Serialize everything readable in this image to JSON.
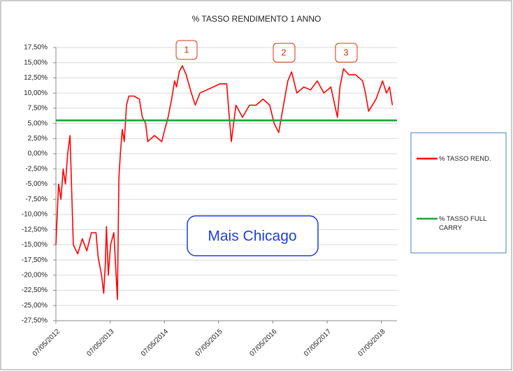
{
  "chart_data": {
    "type": "line",
    "title": "%  TASSO RENDIMENTO 1 ANNO",
    "xlim": [
      "07/05/2012",
      "20/08/2018"
    ],
    "xticks": [
      "07/05/2012",
      "07/05/2013",
      "07/05/2014",
      "07/05/2015",
      "07/05/2016",
      "07/05/2017",
      "07/05/2018"
    ],
    "ylim": [
      -27.5,
      17.5
    ],
    "yticks": [
      {
        "value": -27.5,
        "label": "-27,50%"
      },
      {
        "value": -25,
        "label": "-25,00%"
      },
      {
        "value": -22.5,
        "label": "-22,50%"
      },
      {
        "value": -20,
        "label": "-20,00%"
      },
      {
        "value": -17.5,
        "label": "-17,50%"
      },
      {
        "value": -15,
        "label": "-15,00%"
      },
      {
        "value": -12.5,
        "label": "-12,50%"
      },
      {
        "value": -10,
        "label": "-10,00%"
      },
      {
        "value": -7.5,
        "label": "-7,50%"
      },
      {
        "value": -5,
        "label": "-5,00%"
      },
      {
        "value": -2.5,
        "label": "-2,50%"
      },
      {
        "value": 0,
        "label": "0,00%"
      },
      {
        "value": 2.5,
        "label": "2,50%"
      },
      {
        "value": 5,
        "label": "5,00%"
      },
      {
        "value": 7.5,
        "label": "7,50%"
      },
      {
        "value": 10,
        "label": "10,00%"
      },
      {
        "value": 12.5,
        "label": "12,50%"
      },
      {
        "value": 15,
        "label": "15,00%"
      },
      {
        "value": 17.5,
        "label": "17,50%"
      }
    ],
    "grid": true,
    "series": [
      {
        "name": "% TASSO REND.",
        "color": "#ff0000",
        "x": [
          "07/05/2012",
          "25/05/2012",
          "10/06/2012",
          "25/06/2012",
          "10/07/2012",
          "25/07/2012",
          "10/08/2012",
          "01/09/2012",
          "01/10/2012",
          "01/11/2012",
          "01/12/2012",
          "01/01/2013",
          "01/02/2013",
          "15/02/2013",
          "10/03/2013",
          "25/03/2013",
          "05/04/2013",
          "12/04/2013",
          "25/04/2013",
          "10/05/2013",
          "01/06/2013",
          "25/06/2013",
          "05/07/2013",
          "15/07/2013",
          "28/07/2013",
          "10/08/2013",
          "25/08/2013",
          "10/09/2013",
          "15/10/2013",
          "20/11/2013",
          "10/12/2013",
          "01/01/2014",
          "15/01/2014",
          "01/03/2014",
          "20/04/2014",
          "10/05/2014",
          "01/06/2014",
          "25/06/2014",
          "15/07/2014",
          "28/07/2014",
          "15/08/2014",
          "05/09/2014",
          "01/10/2014",
          "05/11/2014",
          "01/12/2014",
          "01/01/2015",
          "15/02/2015",
          "01/04/2015",
          "15/05/2015",
          "01/07/2015",
          "15/07/2015",
          "01/08/2015",
          "01/09/2015",
          "15/10/2015",
          "01/12/2015",
          "15/01/2016",
          "01/03/2016",
          "15/04/2016",
          "15/05/2016",
          "15/06/2016",
          "10/07/2016",
          "15/08/2016",
          "10/09/2016",
          "15/10/2016",
          "01/12/2016",
          "15/01/2017",
          "01/03/2017",
          "15/04/2017",
          "01/06/2017",
          "15/07/2017",
          "01/08/2017",
          "25/08/2017",
          "01/10/2017",
          "15/11/2017",
          "01/01/2018",
          "20/01/2018",
          "10/02/2018",
          "01/04/2018",
          "15/05/2018",
          "10/06/2018",
          "01/07/2018",
          "20/07/2018"
        ],
        "values": [
          -15,
          -5,
          -7.5,
          -2.5,
          -5,
          0,
          3,
          -15,
          -16.5,
          -14,
          -16,
          -13,
          -13,
          -17,
          -20,
          -23,
          -18,
          -12,
          -20,
          -15,
          -13,
          -24,
          -4,
          0,
          4,
          2,
          8,
          9.5,
          9.5,
          9,
          6,
          5,
          2,
          3,
          2,
          4,
          6,
          9,
          12,
          11,
          13.5,
          14.5,
          13,
          10,
          8,
          10,
          10.5,
          11,
          11.5,
          11.5,
          7,
          2,
          8,
          6,
          8,
          8,
          9,
          8,
          5,
          3.5,
          7,
          12,
          13.5,
          10,
          11,
          10.5,
          12,
          10,
          11,
          6,
          11,
          14,
          13,
          13,
          12,
          10,
          7,
          9,
          12,
          10,
          11,
          8
        ]
      },
      {
        "name": "% TASSO FULL CARRY",
        "color": "#1aa33a",
        "x": [
          "07/05/2012",
          "20/08/2018"
        ],
        "values": [
          5.5,
          5.5
        ]
      }
    ],
    "annotations": [
      "1",
      "2",
      "3",
      "Mais Chicago"
    ]
  }
}
